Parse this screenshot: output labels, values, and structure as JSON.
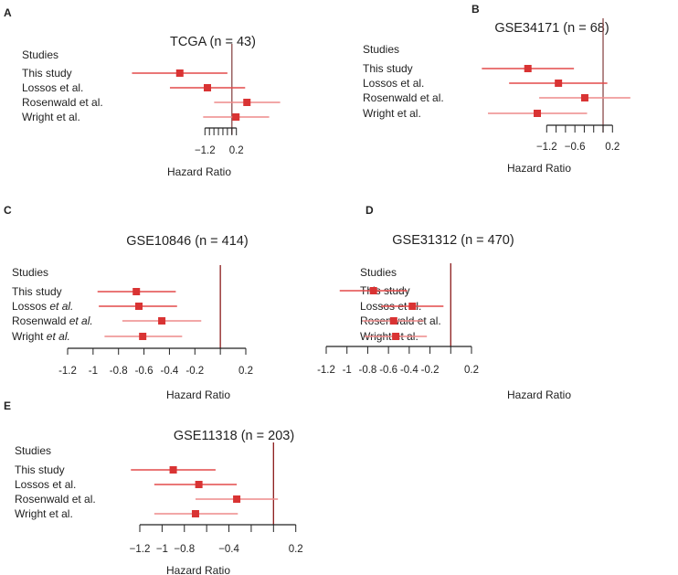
{
  "chart_data": [
    {
      "type": "forest",
      "panel": "A",
      "title": "TCGA (n = 43)",
      "xlabel": "Hazard Ratio",
      "header": "Studies",
      "ticks": [
        -1.2,
        -1.0,
        -0.8,
        -0.6,
        -0.4,
        -0.2,
        0.0,
        0.2
      ],
      "tick_labels": {
        "-1.2": "−1.2",
        "0.2": "0.2"
      },
      "reference": 0,
      "studies": [
        {
          "label": "This study",
          "estimate": -2.32,
          "lower": -4.45,
          "upper": -0.2
        },
        {
          "label": "Lossos et al.",
          "estimate": -1.09,
          "lower": -2.76,
          "upper": 0.59
        },
        {
          "label": "Rosenwald et al.",
          "estimate": 0.67,
          "lower": -0.79,
          "upper": 2.15
        },
        {
          "label": "Wright et al.",
          "estimate": 0.18,
          "lower": -1.28,
          "upper": 1.66
        }
      ]
    },
    {
      "type": "forest",
      "panel": "B",
      "title": "GSE34171 (n = 68)",
      "xlabel": "Hazard Ratio",
      "header": "Studies",
      "ticks": [
        -1.2,
        -1.0,
        -0.8,
        -0.6,
        -0.4,
        -0.2,
        0.0,
        0.2
      ],
      "tick_labels": {
        "-1.2": "−1.2",
        "-0.6": "−0.6",
        "0.2": "0.2"
      },
      "reference": 0,
      "studies": [
        {
          "label": "This study",
          "estimate": -1.6,
          "lower": -2.58,
          "upper": -0.62
        },
        {
          "label": "Lossos et al.",
          "estimate": -0.95,
          "lower": -2.0,
          "upper": 0.09
        },
        {
          "label": "Rosenwald et al.",
          "estimate": -0.39,
          "lower": -1.36,
          "upper": 0.58
        },
        {
          "label": "Wright et al.",
          "estimate": -1.4,
          "lower": -2.45,
          "upper": -0.34
        }
      ]
    },
    {
      "type": "forest",
      "panel": "C",
      "title": "GSE10846 (n = 414)",
      "xlabel": "Hazard Ratio",
      "header": "Studies",
      "ticks": [
        -1.2,
        -1.0,
        -0.8,
        -0.6,
        -0.4,
        -0.2,
        0.0,
        0.2
      ],
      "tick_labels": {
        "-1.2": "-1.2",
        "-1.0": "-1",
        "-0.8": "-0.8",
        "-0.6": "-0.6",
        "-0.4": "-0.4",
        "-0.2": "-0.2",
        "0.2": "0.2"
      },
      "reference": 0,
      "studies": [
        {
          "label": "This study",
          "estimate": -0.66,
          "lower": -0.965,
          "upper": -0.35
        },
        {
          "label": "Lossos et al.",
          "estimate": -0.64,
          "lower": -0.955,
          "upper": -0.34
        },
        {
          "label": "Rosenwald et al.",
          "estimate": -0.46,
          "lower": -0.77,
          "upper": -0.15
        },
        {
          "label": "Wright et al.",
          "estimate": -0.61,
          "lower": -0.91,
          "upper": -0.3
        }
      ]
    },
    {
      "type": "forest",
      "panel": "D",
      "title": "GSE31312 (n = 470)",
      "xlabel": "Hazard Ratio",
      "header": "Studies",
      "ticks": [
        -1.2,
        -1.0,
        -0.8,
        -0.6,
        -0.4,
        -0.2,
        0.0,
        0.2
      ],
      "tick_labels": {
        "-1.2": "-1.2",
        "-1.0": "-1",
        "-0.8": "-0.8",
        "-0.6": "-0.6",
        "-0.4": "-0.4",
        "-0.2": "-0.2",
        "0.2": "0.2"
      },
      "reference": 0,
      "studies": [
        {
          "label": "This study",
          "estimate": -0.745,
          "lower": -1.07,
          "upper": -0.42
        },
        {
          "label": "Lossos et al.",
          "estimate": -0.37,
          "lower": -0.67,
          "upper": -0.07
        },
        {
          "label": "Rosenwald et al.",
          "estimate": -0.55,
          "lower": -0.85,
          "upper": -0.26
        },
        {
          "label": "Wright et al.",
          "estimate": -0.53,
          "lower": -0.83,
          "upper": -0.23
        }
      ]
    },
    {
      "type": "forest",
      "panel": "E",
      "title": "GSE11318 (n = 203)",
      "xlabel": "Hazard Ratio",
      "header": "Studies",
      "ticks": [
        -1.2,
        -1.0,
        -0.8,
        -0.6,
        -0.4,
        -0.2,
        0.0,
        0.2
      ],
      "tick_labels": {
        "-1.2": "−1.2",
        "-1.0": "−1",
        "-0.8": "−0.8",
        "-0.4": "−0.4",
        "0.2": "0.2"
      },
      "reference": 0,
      "studies": [
        {
          "label": "This study",
          "estimate": -0.9,
          "lower": -1.28,
          "upper": -0.52
        },
        {
          "label": "Lossos et al.",
          "estimate": -0.67,
          "lower": -1.07,
          "upper": -0.33
        },
        {
          "label": "Rosenwald et al.",
          "estimate": -0.33,
          "lower": -0.7,
          "upper": 0.04
        },
        {
          "label": "Wright et al.",
          "estimate": -0.7,
          "lower": -1.07,
          "upper": -0.32
        }
      ]
    }
  ],
  "colors": {
    "point": "#d93333",
    "ci": "#e44a4a",
    "ci_light": "#ee8a8a",
    "reference": "#8b1a1a",
    "axis": "#222222"
  }
}
